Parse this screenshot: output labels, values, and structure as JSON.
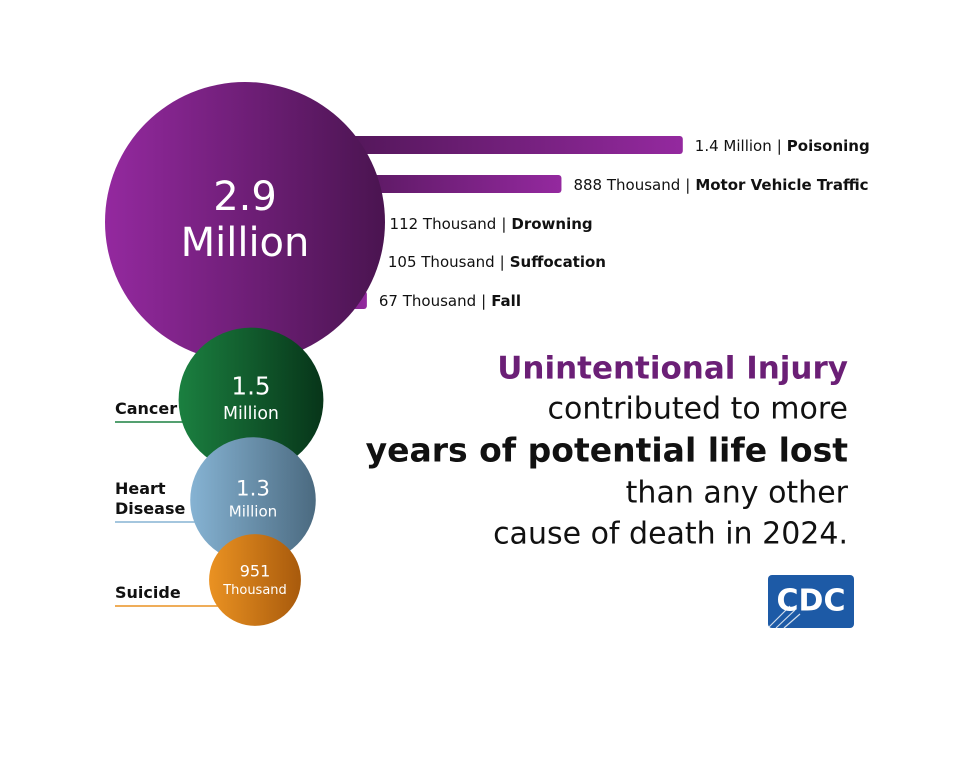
{
  "chart_data": [
    {
      "type": "bubble",
      "categories": [
        null,
        "Cancer",
        "Heart Disease",
        "Suicide"
      ],
      "values": [
        2900000,
        1500000,
        1300000,
        951000
      ],
      "value_labels": [
        [
          "2.9",
          "Million"
        ],
        [
          "1.5",
          "Million"
        ],
        [
          "1.3",
          "Million"
        ],
        [
          "951",
          "Thousand"
        ]
      ],
      "colors": [
        [
          "#94299f",
          "#4a1450"
        ],
        [
          "#1b8040",
          "#073519"
        ],
        [
          "#86b3d3",
          "#4b6a80"
        ],
        [
          "#ea9222",
          "#a85a0c"
        ]
      ]
    },
    {
      "type": "bar",
      "categories": [
        "Poisoning",
        "Motor Vehicle Traffic",
        "Drowning",
        "Suffocation",
        "Fall"
      ],
      "values": [
        1400000,
        888000,
        112000,
        105000,
        67000
      ],
      "value_labels": [
        "1.4 Million",
        "888 Thousand",
        "112 Thousand",
        "105 Thousand",
        "67 Thousand"
      ],
      "separator": "|",
      "colors": [
        "#4a1450",
        "#94299f"
      ]
    }
  ],
  "headline": [
    {
      "text": "Unintentional Injury",
      "style": "accent"
    },
    {
      "text": "contributed to more",
      "style": "plain"
    },
    {
      "text": "years of potential life lost",
      "style": "strong"
    },
    {
      "text": "than any other",
      "style": "plain"
    },
    {
      "text": "cause of death in 2024.",
      "style": "plain"
    }
  ],
  "logo": "CDC"
}
